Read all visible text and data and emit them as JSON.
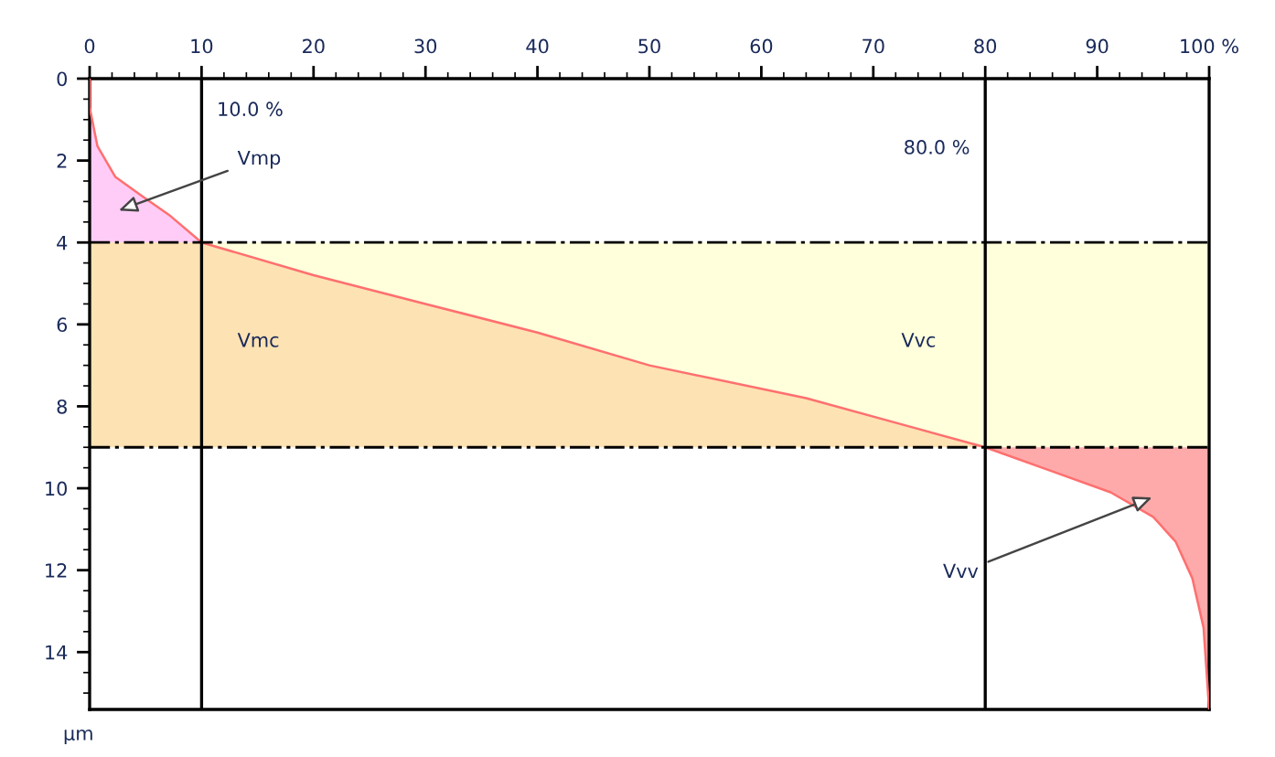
{
  "chart_data": {
    "type": "line",
    "ylabel": "µm",
    "xlim": [
      0,
      100
    ],
    "ylim": [
      15.4,
      0
    ],
    "xticks": [
      0,
      10,
      20,
      30,
      40,
      50,
      60,
      70,
      80,
      90,
      {
        "value": 100,
        "label": "100 %"
      }
    ],
    "yticks": [
      0,
      2,
      4,
      6,
      8,
      10,
      12,
      14
    ],
    "grid": false,
    "series": [
      {
        "type": "area",
        "color": "#ffccf7",
        "x": [
          0,
          0,
          0.7,
          2.3,
          4.6,
          7.2,
          10,
          0
        ],
        "values": [
          0,
          0.7,
          1.65,
          2.4,
          2.85,
          3.35,
          4,
          4
        ]
      },
      {
        "type": "area",
        "color": "#fde2b3",
        "x": [
          10,
          20,
          30,
          40,
          50,
          64,
          72,
          80,
          0,
          0
        ],
        "values": [
          4,
          4.8,
          5.5,
          6.2,
          7.0,
          7.8,
          8.4,
          9.0,
          9,
          4
        ]
      },
      {
        "type": "area",
        "color": "#ffffdb",
        "x": [
          10,
          20,
          30,
          40,
          50,
          64,
          72,
          80,
          100,
          100
        ],
        "values": [
          4,
          4.8,
          5.5,
          6.2,
          7.0,
          7.8,
          8.4,
          9.0,
          9,
          4
        ]
      },
      {
        "type": "area",
        "color": "#ffaaaa",
        "x": [
          80,
          85.6,
          91.2,
          95,
          97,
          98.5,
          99.5,
          100,
          100
        ],
        "values": [
          9.0,
          9.55,
          10.1,
          10.7,
          11.3,
          12.2,
          13.4,
          15.4,
          9
        ]
      },
      {
        "color": "#ff6f6f",
        "x": [
          0,
          0,
          0.7,
          2.3,
          4.6,
          7.2,
          10,
          20,
          30,
          40,
          50,
          64,
          72,
          80,
          85.6,
          91.2,
          95,
          97,
          98.5,
          99.5,
          100
        ],
        "values": [
          0,
          0.7,
          1.65,
          2.4,
          2.85,
          3.35,
          4,
          4.8,
          5.5,
          6.2,
          7.0,
          7.8,
          8.4,
          9.0,
          9.55,
          10.1,
          10.7,
          11.3,
          12.2,
          13.4,
          15.4
        ]
      }
    ],
    "ref_lines": [
      {
        "axis": "x",
        "value": 10,
        "label": "10.0 %",
        "color": "#000000",
        "line_style": "solid"
      },
      {
        "axis": "x",
        "value": 80,
        "label": "80.0 %",
        "color": "#000000",
        "line_style": "solid"
      },
      {
        "axis": "y",
        "value": 4,
        "color": "#000000",
        "line_style": "dashdot"
      },
      {
        "axis": "y",
        "value": 9,
        "color": "#000000",
        "line_style": "dashdot"
      }
    ],
    "annotations": [
      "Vmp",
      "Vmc",
      "Vvc",
      "Vvv"
    ]
  }
}
